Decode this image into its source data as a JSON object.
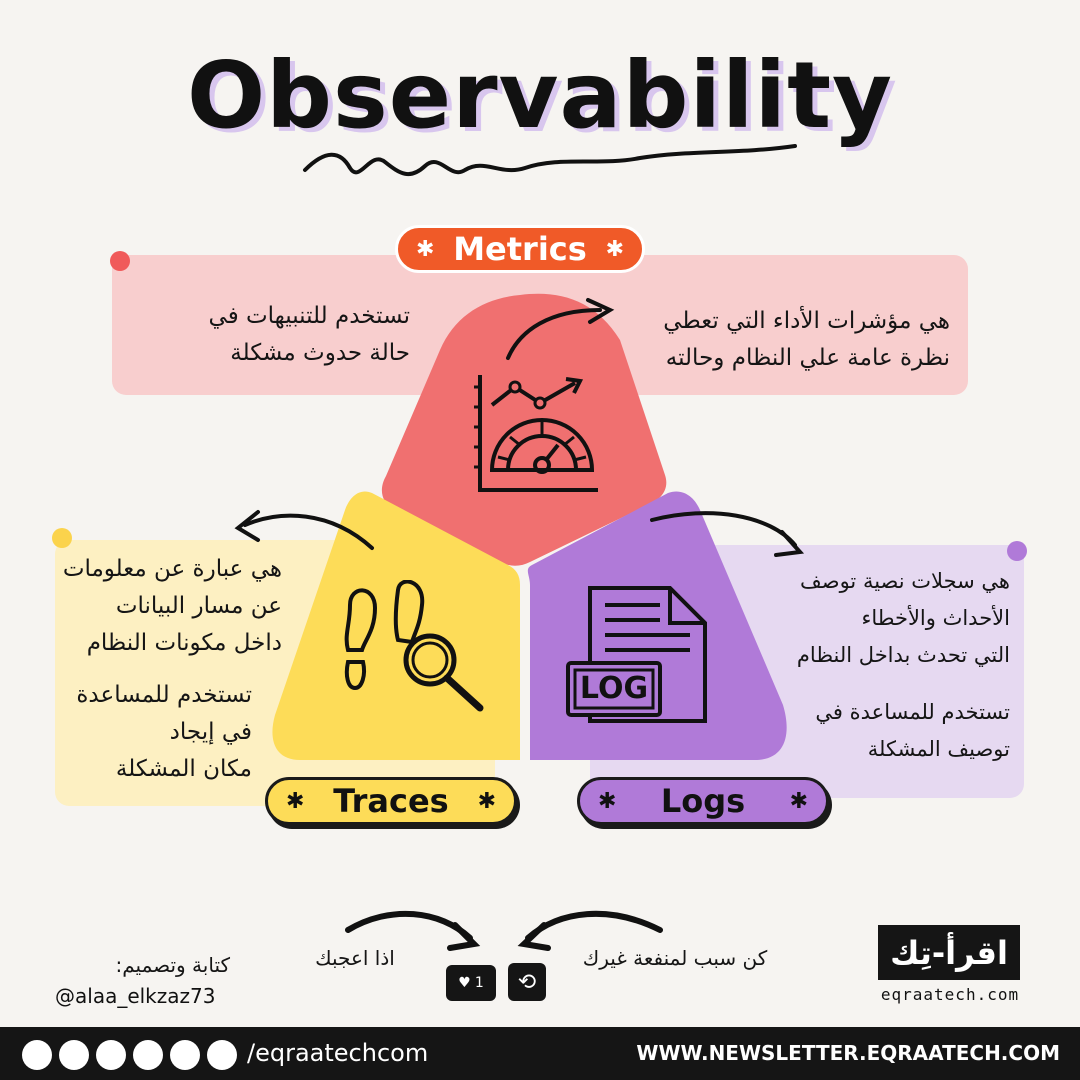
{
  "title": "Observability",
  "metrics": {
    "label": "Metrics",
    "left_text": [
      "تستخدم للتنبيهات في",
      "حالة حدوث مشكلة"
    ],
    "right_text": [
      "هي مؤشرات الأداء التي تعطي",
      "نظرة عامة علي النظام وحالته"
    ],
    "color": "#f07070"
  },
  "traces": {
    "label": "Traces",
    "text1": [
      "هي عبارة عن معلومات",
      "عن مسار البيانات",
      "داخل مكونات النظام"
    ],
    "text2": [
      "تستخدم للمساعدة",
      "في إيجاد",
      "مكان المشكلة"
    ],
    "color": "#fddc58"
  },
  "logs": {
    "label": "Logs",
    "icon_text": "LOG",
    "text1": [
      "هي سجلات نصية توصف",
      "الأحداث والأخطاء",
      "التي تحدث بداخل النظام"
    ],
    "text2": [
      "تستخدم للمساعدة في",
      "توصيف المشكلة"
    ],
    "color": "#b07ad8"
  },
  "credits": {
    "heading": "كتابة وتصميم:",
    "handle": "@alaa_elkzaz73"
  },
  "cta": {
    "like_text": "اذا اعجبك",
    "share_text": "كن سبب لمنفعة غيرك",
    "like_count": "1"
  },
  "brand": {
    "logo_text": "اقرأ-تِك",
    "site": "eqraatech.com"
  },
  "footer": {
    "handle": "/eqraatechcom",
    "newsletter": "WWW.NEWSLETTER.EQRAATECH.COM"
  }
}
